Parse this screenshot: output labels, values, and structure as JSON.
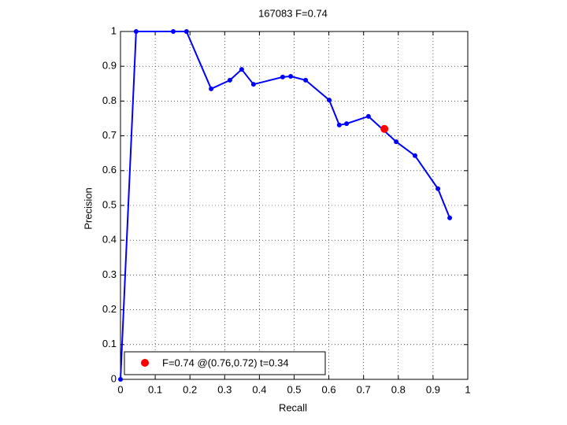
{
  "chart_data": {
    "type": "line",
    "title": "167083 F=0.74",
    "x_label": "Recall",
    "y_label": "Precision",
    "x": [
      0,
      0.045,
      0.152,
      0.19,
      0.261,
      0.315,
      0.349,
      0.383,
      0.467,
      0.49,
      0.533,
      0.601,
      0.63,
      0.651,
      0.714,
      0.794,
      0.848,
      0.914,
      0.948
    ],
    "series": [
      {
        "color": "#0000ff",
        "values": [
          0,
          1,
          1,
          1,
          0.835,
          0.86,
          0.891,
          0.848,
          0.869,
          0.871,
          0.86,
          0.803,
          0.731,
          0.735,
          0.756,
          0.683,
          0.643,
          0.548,
          0.464
        ]
      }
    ],
    "highlight": {
      "x": 0.76,
      "y": 0.72,
      "color": "#ff0000",
      "label": "F=0.74 @(0.76,0.72) t=0.34"
    },
    "xlim": [
      0,
      1
    ],
    "ylim": [
      0,
      1
    ],
    "xticks": [
      0,
      0.1,
      0.2,
      0.3,
      0.4,
      0.5,
      0.6,
      0.7,
      0.8,
      0.9,
      1
    ],
    "yticks": [
      0,
      0.1,
      0.2,
      0.3,
      0.4,
      0.5,
      0.6,
      0.7,
      0.8,
      0.9,
      1
    ],
    "grid": true,
    "legend_position": "lower-left"
  }
}
